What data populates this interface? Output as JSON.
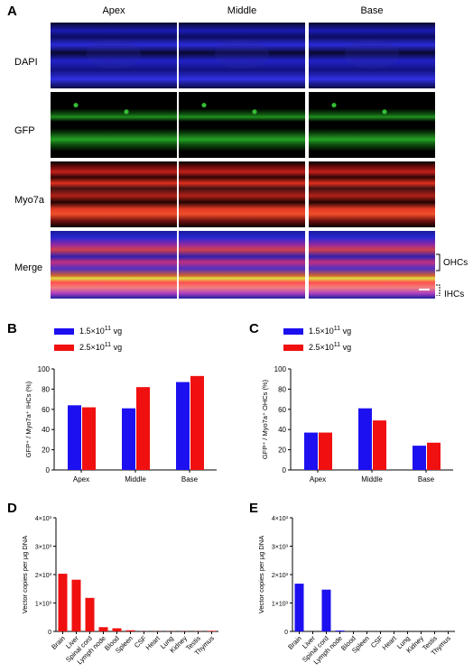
{
  "panels": {
    "a": "A",
    "b": "B",
    "c": "C",
    "d": "D",
    "e": "E"
  },
  "columns": [
    "Apex",
    "Middle",
    "Base"
  ],
  "rows": [
    "DAPI",
    "GFP",
    "Myo7a",
    "Merge"
  ],
  "annotations": {
    "ohcs": "OHCs",
    "ihcs": "IHCs"
  },
  "colors": {
    "blue": "#1d10f0",
    "red": "#f01010",
    "dapi": "#2020d0",
    "gfp": "#22a022",
    "myo7a": "#d02018"
  },
  "legend": {
    "low": "1.5×10",
    "low_exp": "11",
    "low_unit": " vg",
    "high": "2.5×10",
    "high_exp": "11",
    "high_unit": " vg"
  },
  "chart_data": [
    {
      "panel": "B",
      "type": "bar",
      "categories": [
        "Apex",
        "Middle",
        "Base"
      ],
      "series": [
        {
          "name": "1.5×10^11 vg",
          "color": "#1d10f0",
          "values": [
            64,
            61,
            87
          ]
        },
        {
          "name": "2.5×10^11 vg",
          "color": "#f01010",
          "values": [
            62,
            82,
            93
          ]
        }
      ],
      "ylabel": "GFP⁺ / Myo7a⁺ IHCs (%)",
      "ylim": [
        0,
        100
      ],
      "yticks": [
        0,
        20,
        40,
        60,
        80,
        100
      ]
    },
    {
      "panel": "C",
      "type": "bar",
      "categories": [
        "Apex",
        "Middle",
        "Base"
      ],
      "series": [
        {
          "name": "1.5×10^11 vg",
          "color": "#1d10f0",
          "values": [
            37,
            61,
            24
          ]
        },
        {
          "name": "2.5×10^11 vg",
          "color": "#f01010",
          "values": [
            37,
            49,
            27
          ]
        }
      ],
      "ylabel": "GFP⁺ / Myo7a⁺ OHCs (%)",
      "ylim": [
        0,
        100
      ],
      "yticks": [
        0,
        20,
        40,
        60,
        80,
        100
      ]
    },
    {
      "panel": "D",
      "type": "bar",
      "categories": [
        "Brain",
        "Liver",
        "Spinal cord",
        "Lymph node",
        "Blood",
        "Spleen",
        "CSF",
        "Heart",
        "Lung",
        "Kidney",
        "Testis",
        "Thymus"
      ],
      "series": [
        {
          "color": "#f01010",
          "values": [
            2030,
            1820,
            1180,
            150,
            110,
            40,
            5,
            5,
            5,
            5,
            5,
            20
          ]
        }
      ],
      "ylabel": "Vector copies per µg DNA",
      "ylim": [
        0,
        4000
      ],
      "yticks": [
        "0",
        "1×10³",
        "2×10³",
        "3×10³",
        "4×10³"
      ]
    },
    {
      "panel": "E",
      "type": "bar",
      "categories": [
        "Brain",
        "Liver",
        "Spinal cord",
        "Lymph node",
        "Blood",
        "Spleen",
        "CSF",
        "Heart",
        "Lung",
        "Kidney",
        "Testis",
        "Thymus"
      ],
      "series": [
        {
          "color": "#1d10f0",
          "values": [
            1680,
            0,
            1470,
            30,
            0,
            0,
            0,
            0,
            0,
            0,
            0,
            0
          ]
        }
      ],
      "ylabel": "Vector copies per µg DNA",
      "ylim": [
        0,
        4000
      ],
      "yticks": [
        "0",
        "1×10³",
        "2×10³",
        "3×10³",
        "4×10³"
      ]
    }
  ]
}
